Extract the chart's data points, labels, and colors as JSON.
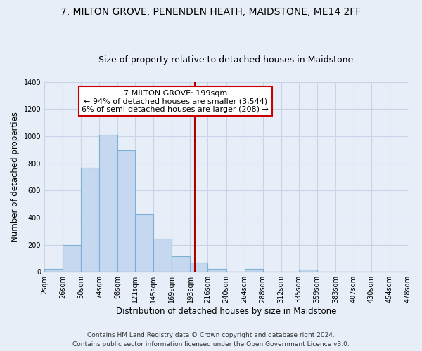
{
  "title": "7, MILTON GROVE, PENENDEN HEATH, MAIDSTONE, ME14 2FF",
  "subtitle": "Size of property relative to detached houses in Maidstone",
  "xlabel": "Distribution of detached houses by size in Maidstone",
  "ylabel": "Number of detached properties",
  "bin_edges": [
    2,
    26,
    50,
    74,
    98,
    121,
    145,
    169,
    193,
    216,
    240,
    264,
    288,
    312,
    335,
    359,
    383,
    407,
    430,
    454,
    478
  ],
  "bin_counts": [
    20,
    200,
    770,
    1010,
    895,
    425,
    245,
    115,
    70,
    25,
    0,
    20,
    0,
    0,
    15,
    0,
    0,
    0,
    0,
    0
  ],
  "bar_color": "#c5d8f0",
  "bar_edge_color": "#7bafd4",
  "vline_x": 199,
  "vline_color": "#aa0000",
  "annotation_title": "7 MILTON GROVE: 199sqm",
  "annotation_line1": "← 94% of detached houses are smaller (3,544)",
  "annotation_line2": "6% of semi-detached houses are larger (208) →",
  "annotation_box_facecolor": "#ffffff",
  "annotation_box_edgecolor": "#cc0000",
  "ylim": [
    0,
    1400
  ],
  "yticks": [
    0,
    200,
    400,
    600,
    800,
    1000,
    1200,
    1400
  ],
  "xtick_labels": [
    "2sqm",
    "26sqm",
    "50sqm",
    "74sqm",
    "98sqm",
    "121sqm",
    "145sqm",
    "169sqm",
    "193sqm",
    "216sqm",
    "240sqm",
    "264sqm",
    "288sqm",
    "312sqm",
    "335sqm",
    "359sqm",
    "383sqm",
    "407sqm",
    "430sqm",
    "454sqm",
    "478sqm"
  ],
  "footnote1": "Contains HM Land Registry data © Crown copyright and database right 2024.",
  "footnote2": "Contains public sector information licensed under the Open Government Licence v3.0.",
  "bg_color": "#e8eef8",
  "grid_color": "#c8d4e8",
  "title_fontsize": 10,
  "subtitle_fontsize": 9,
  "label_fontsize": 8.5,
  "tick_fontsize": 7,
  "footnote_fontsize": 6.5,
  "annotation_fontsize": 8
}
